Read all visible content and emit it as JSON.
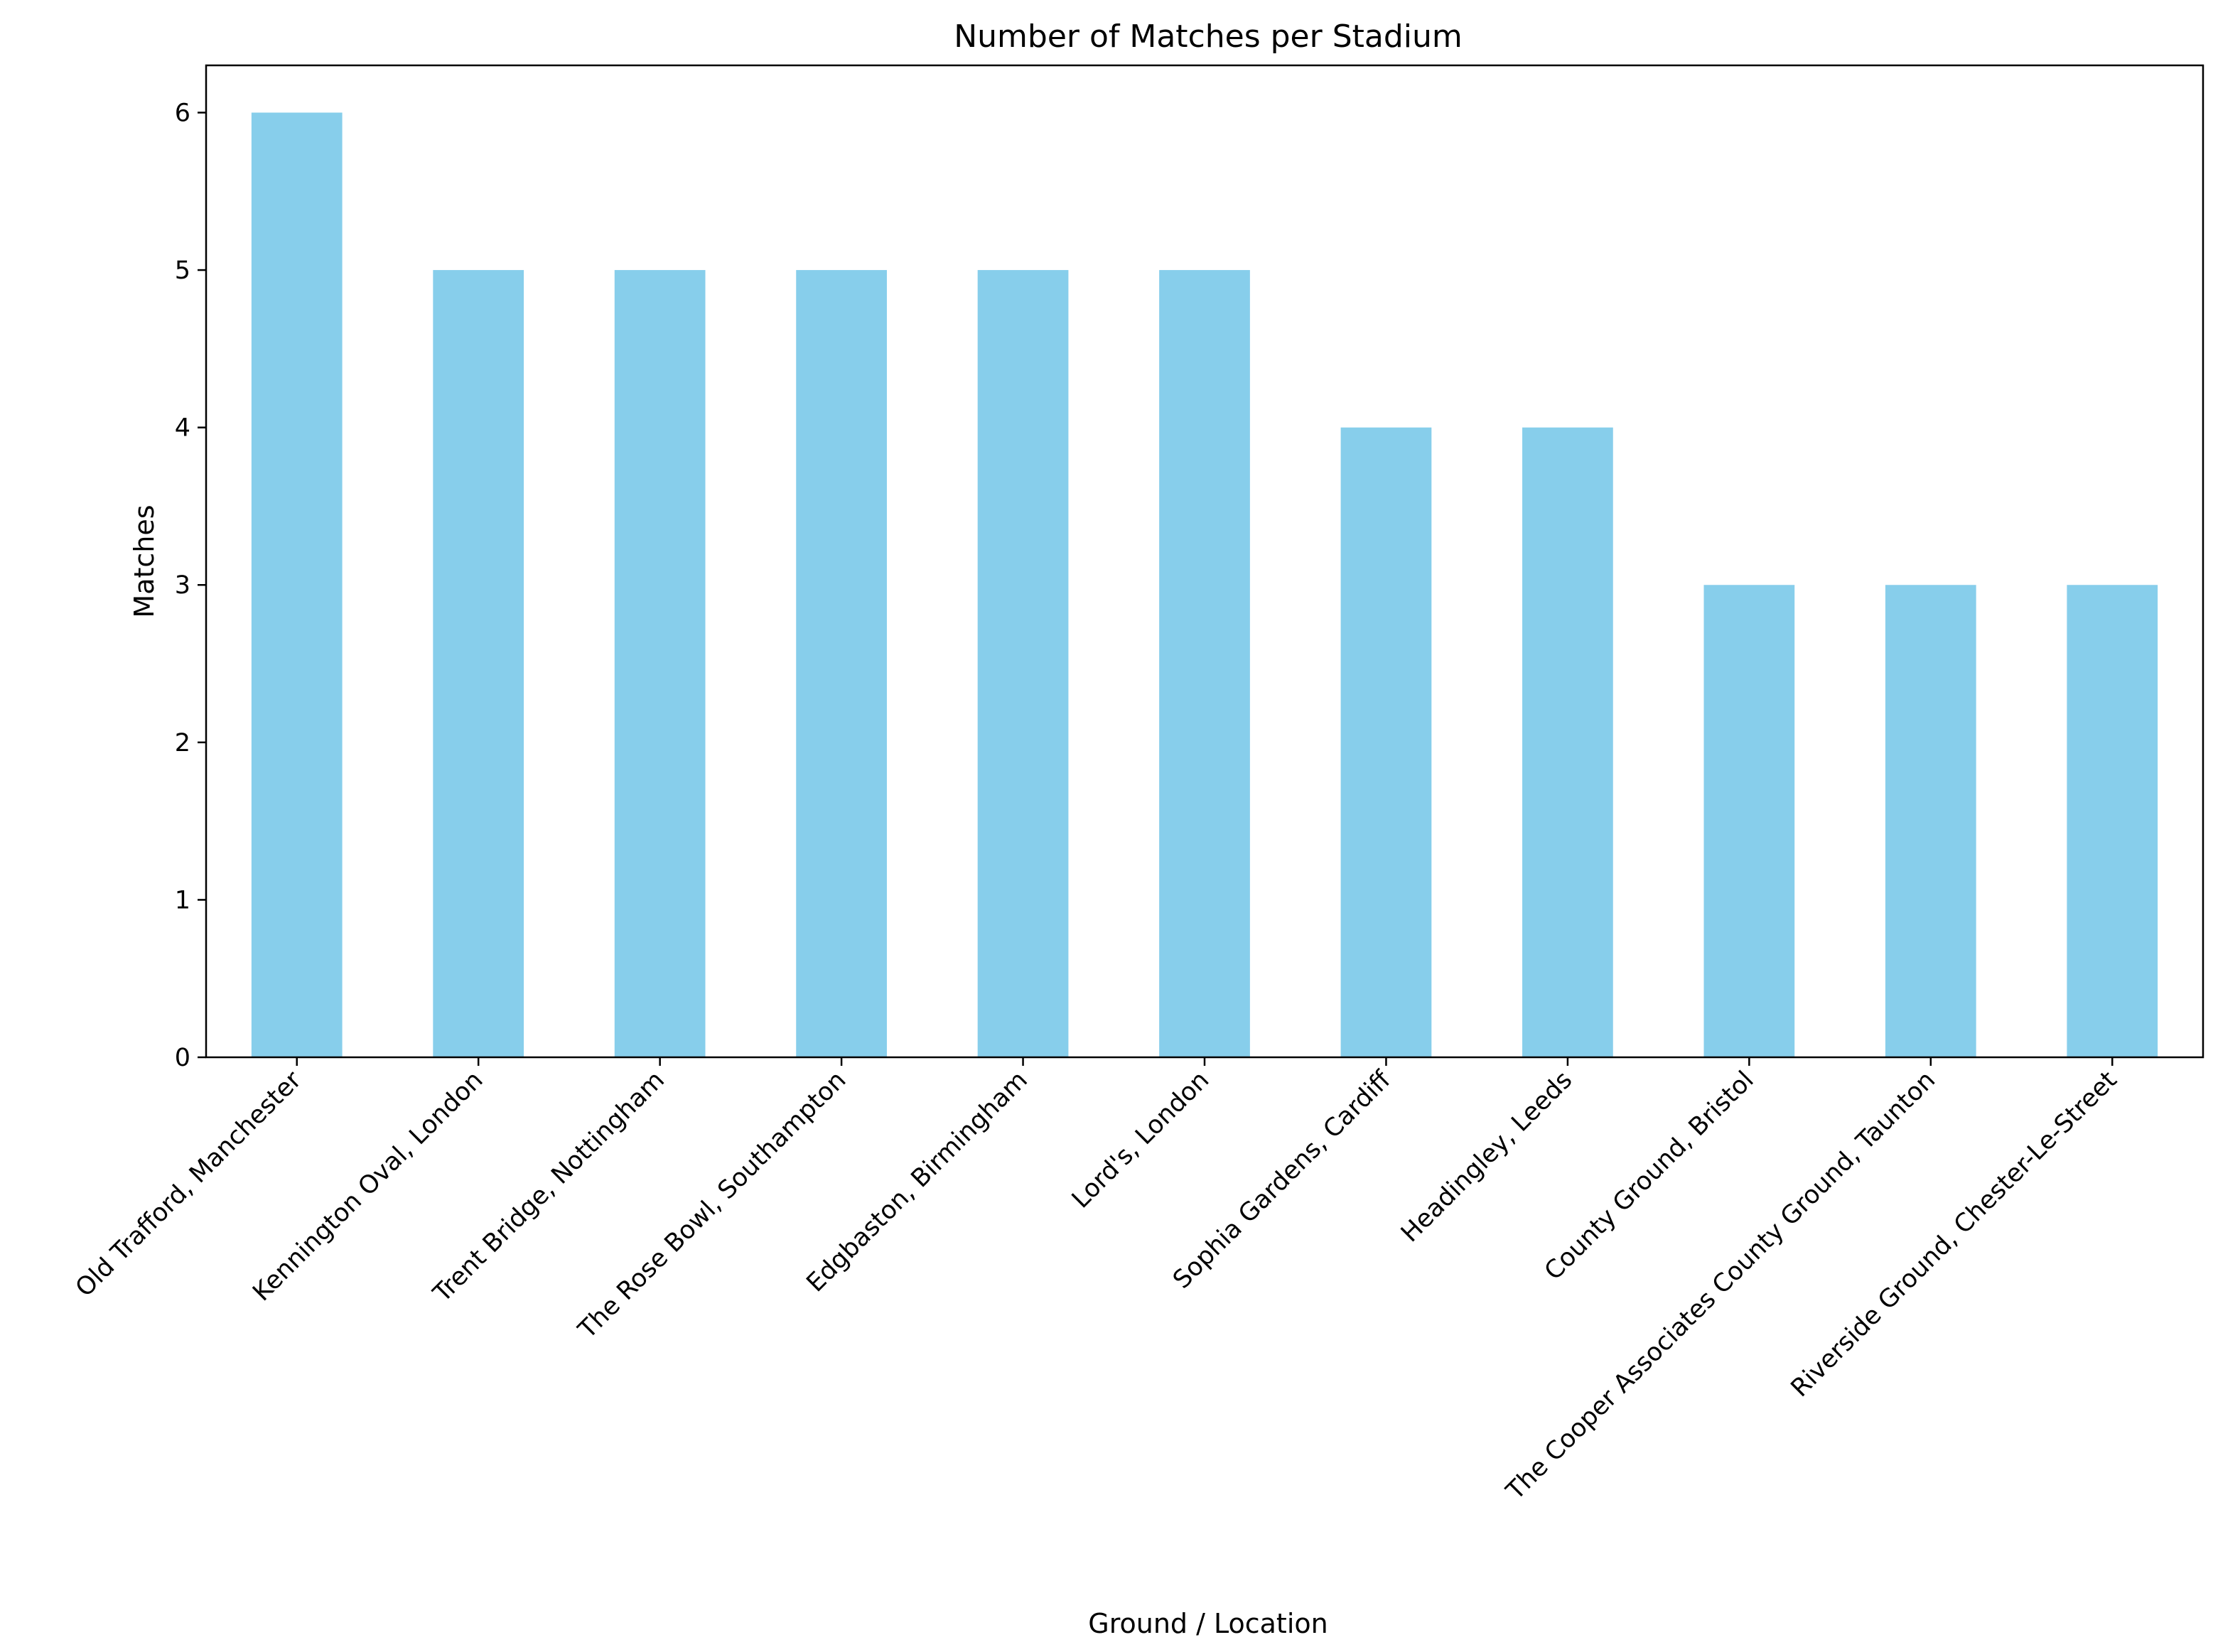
{
  "chart_data": {
    "type": "bar",
    "title": "Number of Matches per Stadium",
    "xlabel": "Ground / Location",
    "ylabel": "Matches",
    "categories": [
      "Old Trafford, Manchester",
      "Kennington Oval, London",
      "Trent Bridge, Nottingham",
      "The Rose Bowl, Southampton",
      "Edgbaston, Birmingham",
      "Lord's, London",
      "Sophia Gardens, Cardiff",
      "Headingley, Leeds",
      "County Ground, Bristol",
      "The Cooper Associates County Ground, Taunton",
      "Riverside Ground, Chester-Le-Street"
    ],
    "values": [
      6,
      5,
      5,
      5,
      5,
      5,
      4,
      4,
      3,
      3,
      3
    ],
    "ylim": [
      0,
      6.3
    ],
    "yticks": [
      0,
      1,
      2,
      3,
      4,
      5,
      6
    ],
    "bar_color": "#87ceeb",
    "grid": false,
    "legend": "none"
  }
}
